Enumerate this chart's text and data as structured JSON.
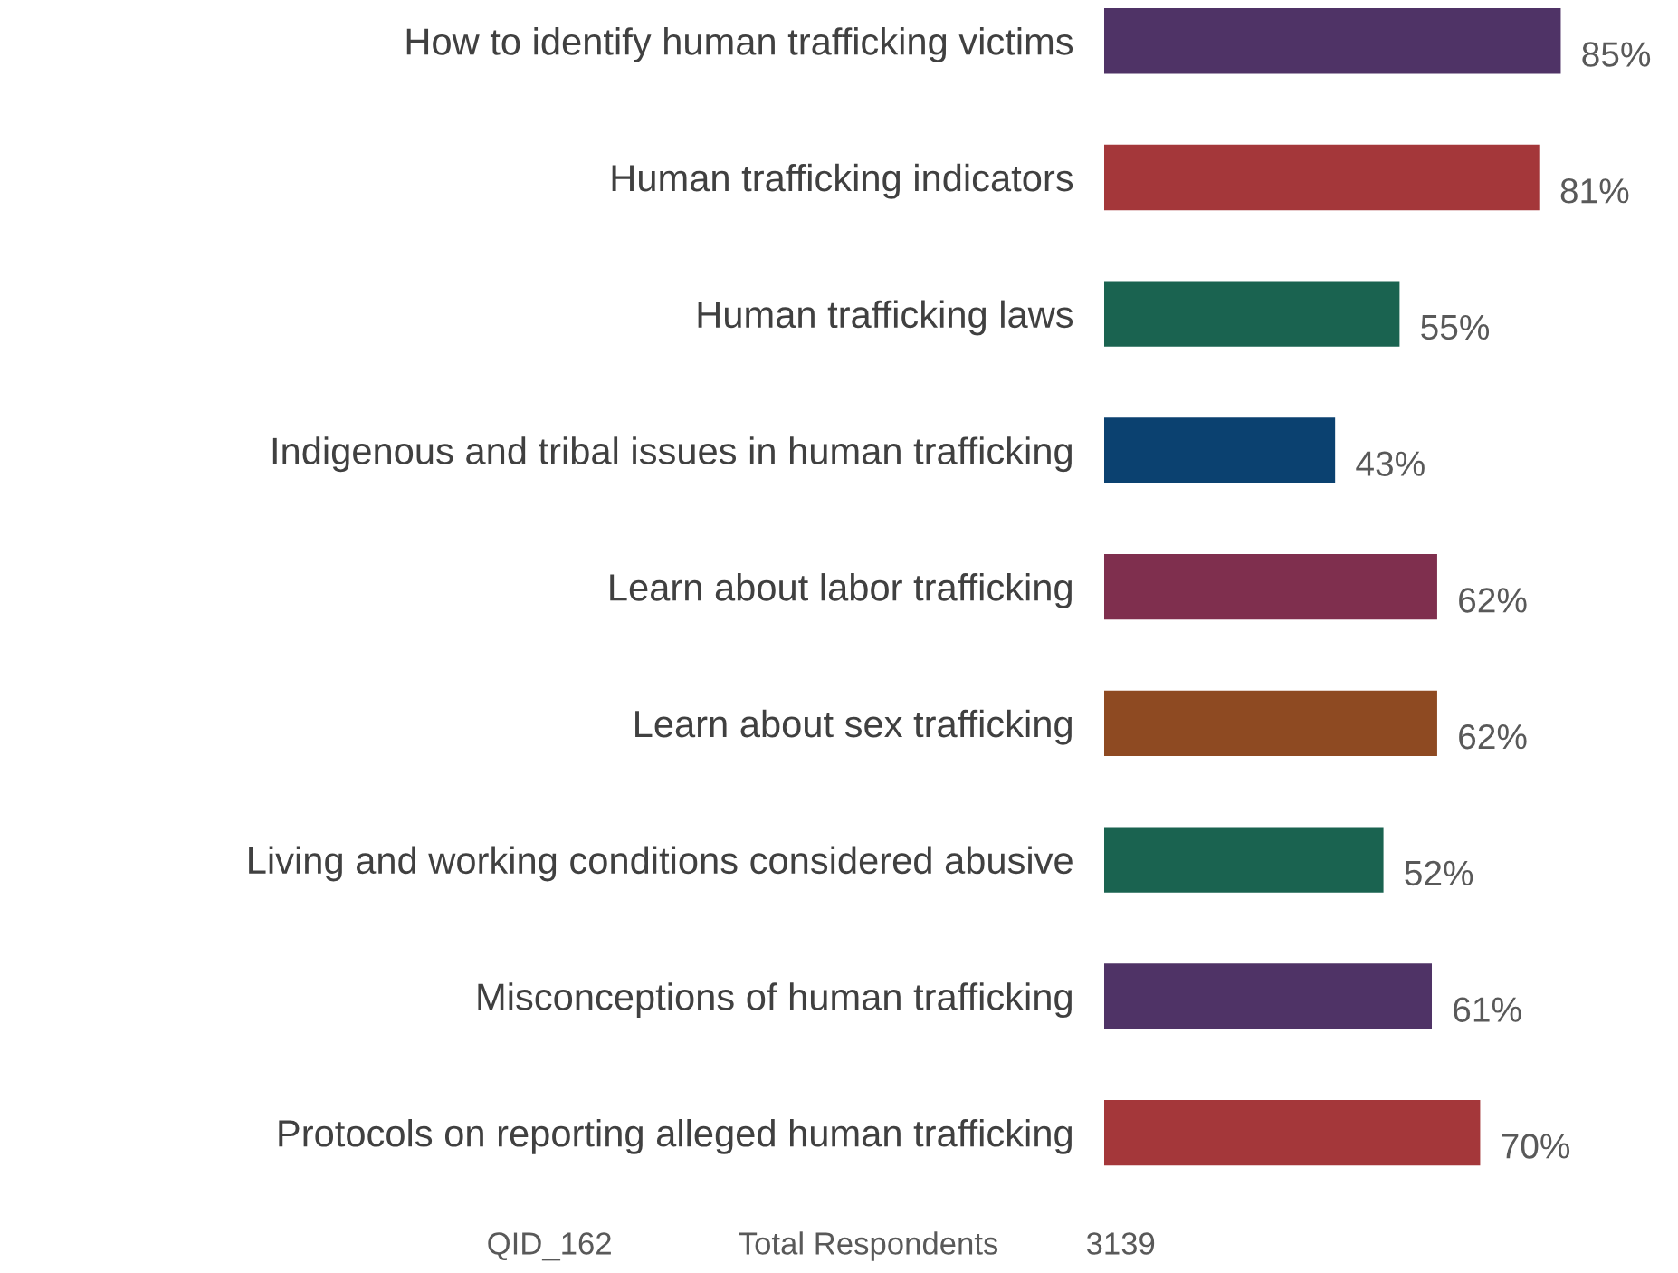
{
  "chart_data": {
    "type": "bar",
    "orientation": "horizontal",
    "categories": [
      "How to identify human trafficking victims",
      "Human trafficking indicators",
      "Human trafficking laws",
      "Indigenous and tribal issues in human trafficking",
      "Learn about labor trafficking",
      "Learn about sex trafficking",
      "Living and working conditions considered abusive",
      "Misconceptions of human trafficking",
      "Protocols on reporting alleged human trafficking"
    ],
    "values": [
      85,
      81,
      55,
      43,
      62,
      62,
      52,
      61,
      70
    ],
    "colors": [
      "#4f3366",
      "#a4373a",
      "#1a6350",
      "#0b4170",
      "#7f2f4e",
      "#8e4a22",
      "#1a6350",
      "#4f3366",
      "#a4373a"
    ],
    "value_labels": [
      "85%",
      "81%",
      "55%",
      "43%",
      "62%",
      "62%",
      "52%",
      "61%",
      "70%"
    ],
    "annotations": [
      "QID_162",
      "Total Respondents",
      "3139"
    ],
    "grid": false,
    "legend": false
  }
}
